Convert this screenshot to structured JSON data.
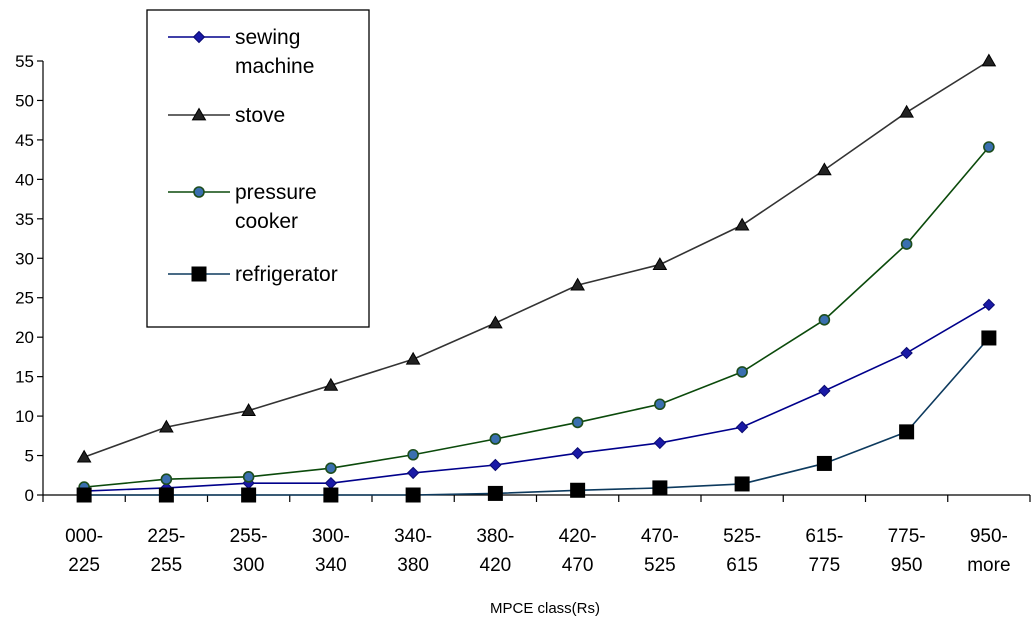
{
  "chart_data": {
    "type": "line",
    "title": "",
    "xlabel": "MPCE class(Rs)",
    "ylabel": "",
    "ylim": [
      0,
      55
    ],
    "yticks": [
      0,
      5,
      10,
      15,
      20,
      25,
      30,
      35,
      40,
      45,
      50,
      55
    ],
    "grid": false,
    "legend_position": "top-left",
    "categories": [
      [
        "000-",
        "225"
      ],
      [
        "225-",
        "255"
      ],
      [
        "255-",
        "300"
      ],
      [
        "300-",
        "340"
      ],
      [
        "340-",
        "380"
      ],
      [
        "380-",
        "420"
      ],
      [
        "420-",
        "470"
      ],
      [
        "470-",
        "525"
      ],
      [
        "525-",
        "615"
      ],
      [
        "615-",
        "775"
      ],
      [
        "775-",
        "950"
      ],
      [
        "950-",
        "more"
      ]
    ],
    "series": [
      {
        "name": "sewing machine",
        "legend_lines": [
          "sewing",
          "machine"
        ],
        "color": "#00008b",
        "marker": "diamond",
        "values": [
          0.5,
          0.9,
          1.5,
          1.5,
          2.8,
          3.8,
          5.3,
          6.6,
          8.6,
          13.2,
          18.0,
          24.1
        ]
      },
      {
        "name": "stove",
        "legend_lines": [
          "stove"
        ],
        "color": "#333333",
        "marker": "triangle",
        "values": [
          4.8,
          8.6,
          10.7,
          13.9,
          17.2,
          21.8,
          26.6,
          29.2,
          34.2,
          41.2,
          48.5,
          55.0
        ]
      },
      {
        "name": "pressure cooker",
        "legend_lines": [
          "pressure",
          "cooker"
        ],
        "color": "#0b4a0b",
        "marker": "circle",
        "values": [
          1.0,
          2.0,
          2.3,
          3.4,
          5.1,
          7.1,
          9.2,
          11.5,
          15.6,
          22.2,
          31.8,
          44.1
        ]
      },
      {
        "name": "refrigerator",
        "legend_lines": [
          "refrigerator"
        ],
        "color": "#0d3a5e",
        "marker": "square",
        "values": [
          0,
          0,
          0,
          0,
          0,
          0.2,
          0.6,
          0.9,
          1.4,
          4.0,
          8.0,
          19.9
        ]
      }
    ]
  }
}
